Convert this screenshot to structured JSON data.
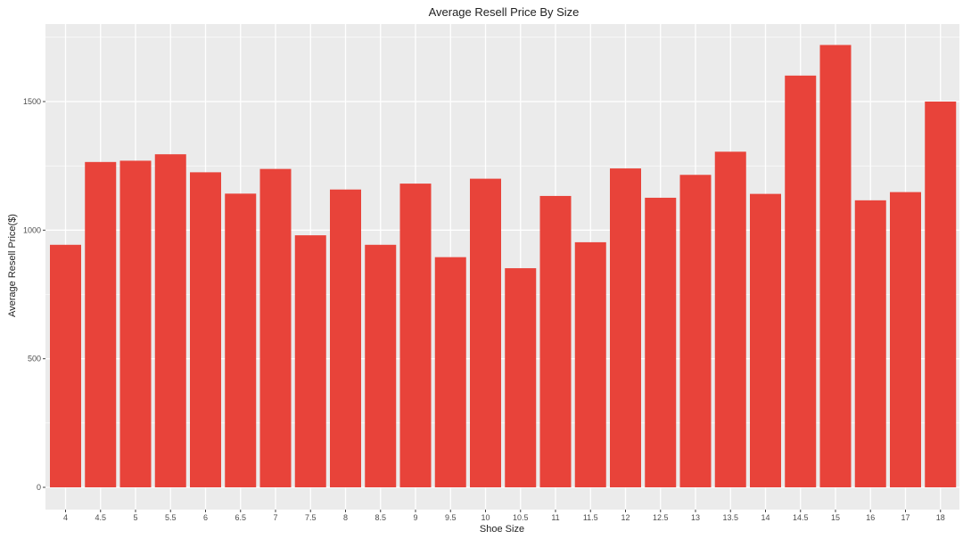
{
  "chart_data": {
    "type": "bar",
    "title": "Average Resell Price By Size",
    "xlabel": "Shoe Size",
    "ylabel": "Average Resell Price($)",
    "categories": [
      "4",
      "4.5",
      "5",
      "5.5",
      "6",
      "6.5",
      "7",
      "7.5",
      "8",
      "8.5",
      "9",
      "9.5",
      "10",
      "10.5",
      "11",
      "11.5",
      "12",
      "12.5",
      "13",
      "13.5",
      "14",
      "14.5",
      "15",
      "16",
      "17",
      "18"
    ],
    "values": [
      943,
      1265,
      1270,
      1295,
      1225,
      1142,
      1238,
      980,
      1158,
      943,
      1181,
      895,
      1200,
      852,
      1133,
      953,
      1240,
      1126,
      1215,
      1305,
      1141,
      1601,
      1720,
      1116,
      1148,
      1500
    ],
    "ylim": [
      0,
      1800
    ],
    "yticks": [
      0,
      500,
      1000,
      1500
    ],
    "grid": true,
    "legend": "none",
    "bar_color": "#e8433a",
    "panel_color": "#ebebeb",
    "grid_color": "#ffffff"
  }
}
